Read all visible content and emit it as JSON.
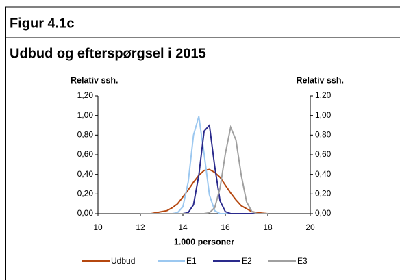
{
  "header": {
    "figure": "Figur 4.1c",
    "title": "Udbud og efterspørgsel i 2015"
  },
  "chart_data": {
    "type": "line",
    "ylabel": "Relativ ssh.",
    "y2label": "Relativ ssh.",
    "xlabel": "1.000 personer",
    "x": [
      12,
      12.5,
      13,
      13.25,
      13.5,
      13.75,
      14,
      14.25,
      14.5,
      14.75,
      15,
      15.25,
      15.5,
      15.75,
      16,
      16.25,
      16.5,
      16.75,
      17,
      17.25,
      17.5,
      18
    ],
    "series": [
      {
        "name": "Udbud",
        "color": "#b5470f",
        "values": [
          0,
          0,
          0.02,
          0.03,
          0.06,
          0.1,
          0.17,
          0.24,
          0.32,
          0.39,
          0.44,
          0.45,
          0.42,
          0.37,
          0.29,
          0.21,
          0.14,
          0.08,
          0.05,
          0.02,
          0.01,
          0
        ]
      },
      {
        "name": "E1",
        "color": "#9cc8f0",
        "values": [
          0,
          0,
          0,
          0,
          0,
          0.01,
          0.07,
          0.32,
          0.8,
          0.99,
          0.61,
          0.19,
          0.03,
          0,
          0,
          0,
          0,
          0,
          0,
          0,
          0,
          0
        ]
      },
      {
        "name": "E2",
        "color": "#2a2a8c",
        "values": [
          0,
          0,
          0,
          0,
          0,
          0,
          0,
          0.01,
          0.09,
          0.39,
          0.84,
          0.9,
          0.48,
          0.13,
          0.02,
          0,
          0,
          0,
          0,
          0,
          0,
          0
        ]
      },
      {
        "name": "E3",
        "color": "#a0a0a0",
        "values": [
          0,
          0,
          0,
          0,
          0,
          0,
          0,
          0,
          0,
          0,
          0,
          0.01,
          0.06,
          0.26,
          0.61,
          0.88,
          0.75,
          0.39,
          0.12,
          0.02,
          0,
          0
        ]
      }
    ],
    "xlim": [
      10,
      20
    ],
    "xticks": [
      10,
      12,
      14,
      16,
      18,
      20
    ],
    "ylim": [
      0,
      1.2
    ],
    "yticks": [
      {
        "value": 0,
        "label": "0,00"
      },
      {
        "value": 0.2,
        "label": "0,20"
      },
      {
        "value": 0.4,
        "label": "0,40"
      },
      {
        "value": 0.6,
        "label": "0,60"
      },
      {
        "value": 0.8,
        "label": "0,80"
      },
      {
        "value": 1.0,
        "label": "1,00"
      },
      {
        "value": 1.2,
        "label": "1,20"
      }
    ],
    "y2lim": [
      0,
      1.2
    ],
    "y2ticks": [
      {
        "value": 0,
        "label": "0,00"
      },
      {
        "value": 0.2,
        "label": "0,20"
      },
      {
        "value": 0.4,
        "label": "0,40"
      },
      {
        "value": 0.6,
        "label": "0,60"
      },
      {
        "value": 0.8,
        "label": "0,80"
      },
      {
        "value": 1.0,
        "label": "1,00"
      },
      {
        "value": 1.2,
        "label": "1,20"
      }
    ]
  }
}
